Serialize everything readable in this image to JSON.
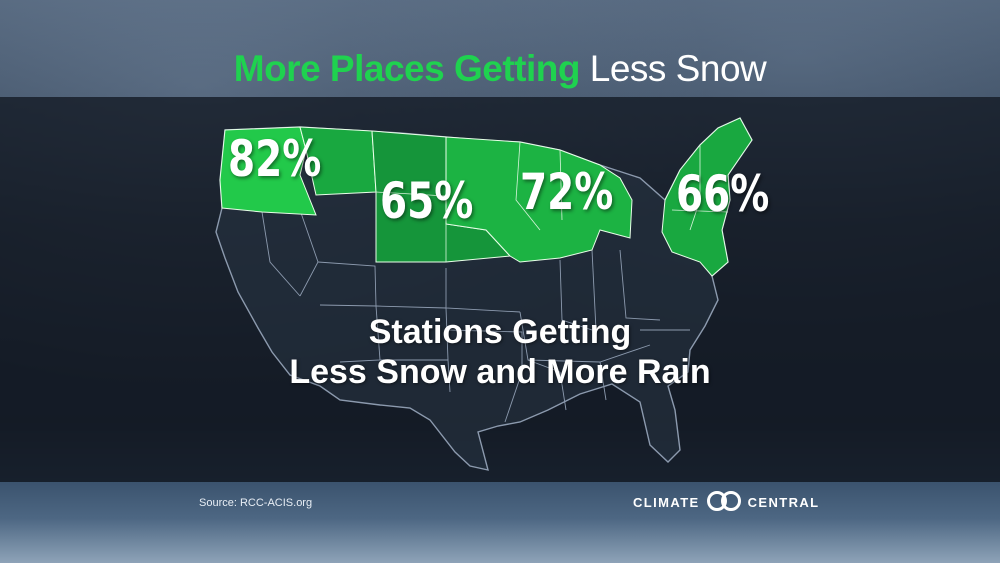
{
  "title": {
    "highlight": "More Places Getting",
    "rest": "Less Snow"
  },
  "regions": [
    {
      "id": "northwest",
      "value": "82%",
      "color": "#22c94a"
    },
    {
      "id": "northern-plains",
      "value": "65%",
      "color": "#15953a"
    },
    {
      "id": "upper-midwest",
      "value": "72%",
      "color": "#1cb343"
    },
    {
      "id": "northeast",
      "value": "66%",
      "color": "#19a840"
    }
  ],
  "subtitle": {
    "line1": "Stations Getting",
    "line2": "Less Snow and More Rain"
  },
  "source": "Source: RCC-ACIS.org",
  "logo": {
    "left": "CLIMATE",
    "right": "CENTRAL"
  }
}
